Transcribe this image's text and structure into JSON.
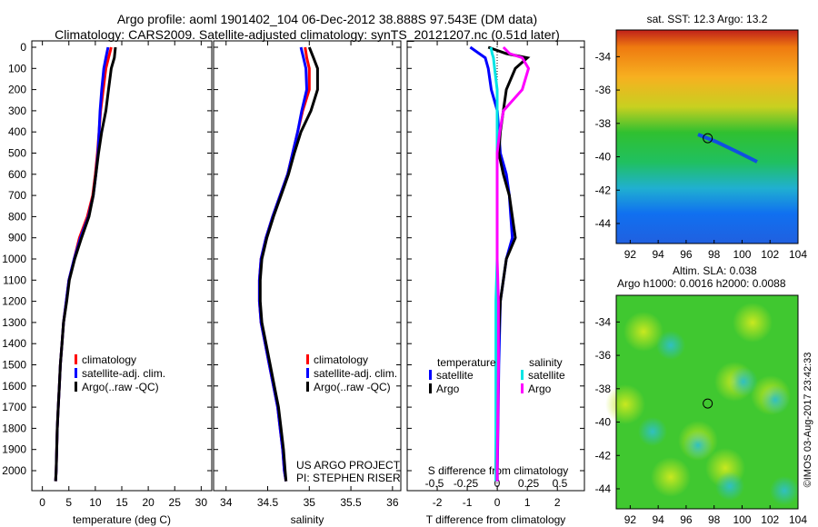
{
  "title_line1": "Argo profile: aoml 1901402_104 06-Dec-2012 38.888S 97.543E (DM data)",
  "title_line2": "Climatology: CARS2009. Satellite-adjusted climatology: synTS_20121207.nc (0.51d later)",
  "colors": {
    "climatology": "#ff0000",
    "satellite": "#0000ff",
    "argo": "#000000",
    "s_satellite": "#00e5e5",
    "s_argo": "#ff00ff"
  },
  "chart_data": [
    {
      "type": "line",
      "id": "temperature",
      "xlabel": "temperature (deg C)",
      "xlim": [
        -2,
        32
      ],
      "ylim": [
        2050,
        0
      ],
      "xticks": [
        0,
        5,
        10,
        15,
        20,
        25,
        30
      ],
      "yticks": [
        0,
        100,
        200,
        300,
        400,
        500,
        600,
        700,
        800,
        900,
        1000,
        1100,
        1200,
        1300,
        1400,
        1500,
        1600,
        1700,
        1800,
        1900,
        2000
      ],
      "depth": [
        0,
        50,
        100,
        200,
        300,
        400,
        500,
        600,
        700,
        800,
        900,
        1000,
        1100,
        1200,
        1300,
        1400,
        1500,
        1600,
        1700,
        1800,
        1900,
        2000,
        2050
      ],
      "series": [
        {
          "name": "climatology",
          "color": "climatology",
          "values": [
            13,
            12.5,
            12,
            11.5,
            11,
            10.7,
            10.4,
            10,
            9.5,
            8.5,
            7,
            6,
            5,
            4.5,
            4,
            3.7,
            3.4,
            3.2,
            3,
            2.8,
            2.7,
            2.6,
            2.5
          ]
        },
        {
          "name": "satellite-adj. clim.",
          "color": "satellite",
          "values": [
            12.4,
            12,
            11.6,
            11.2,
            10.9,
            10.7,
            10.5,
            10.1,
            9.6,
            8.7,
            7.2,
            6,
            5,
            4.5,
            4,
            3.7,
            3.4,
            3.2,
            3,
            2.8,
            2.7,
            2.6,
            2.5
          ]
        },
        {
          "name": "Argo(..raw -QC)",
          "color": "argo",
          "values": [
            13.8,
            13.6,
            13,
            12.5,
            12,
            11.2,
            10.6,
            10.1,
            9.6,
            8.8,
            7.4,
            6.1,
            5.1,
            4.6,
            4,
            3.7,
            3.4,
            3.2,
            3,
            2.8,
            2.7,
            2.6,
            2.5
          ]
        }
      ]
    },
    {
      "type": "line",
      "id": "salinity",
      "xlabel": "salinity",
      "xlim": [
        33.85,
        36.1
      ],
      "ylim": [
        2050,
        0
      ],
      "xticks": [
        34,
        34.5,
        35,
        35.5,
        36
      ],
      "depth": [
        0,
        50,
        100,
        200,
        300,
        400,
        500,
        600,
        700,
        800,
        900,
        1000,
        1100,
        1200,
        1300,
        1400,
        1500,
        1600,
        1700,
        1800,
        1900,
        2000,
        2050
      ],
      "series": [
        {
          "name": "climatology",
          "color": "climatology",
          "values": [
            34.95,
            34.97,
            35.0,
            35.0,
            34.92,
            34.86,
            34.8,
            34.74,
            34.65,
            34.56,
            34.48,
            34.42,
            34.4,
            34.4,
            34.42,
            34.47,
            34.52,
            34.57,
            34.62,
            34.65,
            34.68,
            34.7,
            34.72
          ]
        },
        {
          "name": "satellite-adj. clim.",
          "color": "satellite",
          "values": [
            34.9,
            34.93,
            34.96,
            34.97,
            34.91,
            34.86,
            34.8,
            34.74,
            34.65,
            34.56,
            34.48,
            34.42,
            34.4,
            34.4,
            34.42,
            34.47,
            34.52,
            34.57,
            34.62,
            34.65,
            34.68,
            34.7,
            34.72
          ]
        },
        {
          "name": "Argo(..raw -QC)",
          "color": "argo",
          "values": [
            35.0,
            35.05,
            35.1,
            35.1,
            35.02,
            34.9,
            34.82,
            34.75,
            34.66,
            34.57,
            34.49,
            34.43,
            34.41,
            34.41,
            34.43,
            34.48,
            34.53,
            34.58,
            34.63,
            34.66,
            34.69,
            34.71,
            34.72
          ]
        }
      ],
      "annotation": [
        "US ARGO PROJECT",
        "PI: STEPHEN RISER"
      ]
    },
    {
      "type": "line",
      "id": "differences",
      "xlabel": "T difference from climatology",
      "x2label": "S difference from climatology",
      "xlim": [
        -3,
        2.9
      ],
      "ylim": [
        2050,
        0
      ],
      "xticks": [
        -2,
        -1,
        0,
        1,
        2
      ],
      "x2ticks": [
        -0.5,
        -0.25,
        0,
        0.25,
        0.5
      ],
      "x2ticklabels": [
        "-0.5",
        "-0.25",
        "0",
        "0.25",
        "0.5"
      ],
      "depth": [
        0,
        30,
        50,
        100,
        200,
        300,
        400,
        500,
        600,
        700,
        800,
        900,
        1000,
        1200,
        1500,
        2000,
        2050
      ],
      "series": [
        {
          "name": "satellite",
          "group": "temperature",
          "color": "satellite",
          "axis": "T",
          "values": [
            -0.9,
            -0.6,
            -0.4,
            -0.3,
            -0.2,
            0,
            0.05,
            0.1,
            0.3,
            0.4,
            0.45,
            0.5,
            0.3,
            0.1,
            0.05,
            0,
            0
          ]
        },
        {
          "name": "Argo",
          "group": "temperature",
          "color": "argo",
          "axis": "T",
          "values": [
            -0.3,
            0.3,
            1.0,
            0.6,
            0.3,
            0.2,
            0.1,
            0.05,
            0.2,
            0.4,
            0.5,
            0.6,
            0.3,
            0.1,
            0,
            -0.05,
            0
          ]
        },
        {
          "name": "satellite",
          "group": "salinity",
          "color": "s_satellite",
          "axis": "S",
          "values": [
            -0.05,
            -0.04,
            -0.03,
            -0.02,
            0,
            0,
            0,
            0,
            0,
            0,
            0,
            0,
            0,
            -0.01,
            -0.01,
            -0.01,
            -0.01
          ]
        },
        {
          "name": "Argo",
          "group": "salinity",
          "color": "s_argo",
          "axis": "S",
          "values": [
            0.05,
            0.1,
            0.2,
            0.25,
            0.2,
            0.05,
            0.02,
            0,
            0,
            0,
            0,
            0,
            0,
            0.01,
            0.01,
            0,
            0
          ]
        }
      ],
      "legend_headers": [
        "temperature",
        "salinity"
      ]
    }
  ],
  "legend_labels": [
    "climatology",
    "satellite-adj. clim.",
    "Argo(..raw -QC)"
  ],
  "maps": [
    {
      "id": "sst",
      "title": "sat. SST: 12.3 Argo: 13.2",
      "lon_ticks": [
        92,
        94,
        96,
        98,
        100,
        102,
        104
      ],
      "lat_ticks": [
        -34,
        -36,
        -38,
        -40,
        -42,
        -44
      ],
      "lonlim": [
        91,
        104
      ],
      "latlim": [
        -32.4,
        -45.2
      ],
      "argo_lon": 97.543,
      "argo_lat": -38.888
    },
    {
      "id": "sla",
      "title": "Altim. SLA: 0.038",
      "subtitle": "Argo h1000: 0.0016 h2000: 0.0088",
      "lon_ticks": [
        92,
        94,
        96,
        98,
        100,
        102,
        104
      ],
      "lat_ticks": [
        -34,
        -36,
        -38,
        -40,
        -42,
        -44
      ],
      "lonlim": [
        91,
        104
      ],
      "latlim": [
        -32.4,
        -45.2
      ],
      "argo_lon": 97.543,
      "argo_lat": -38.888
    }
  ],
  "credit": "©IMOS 03-Aug-2017 23:42:33"
}
